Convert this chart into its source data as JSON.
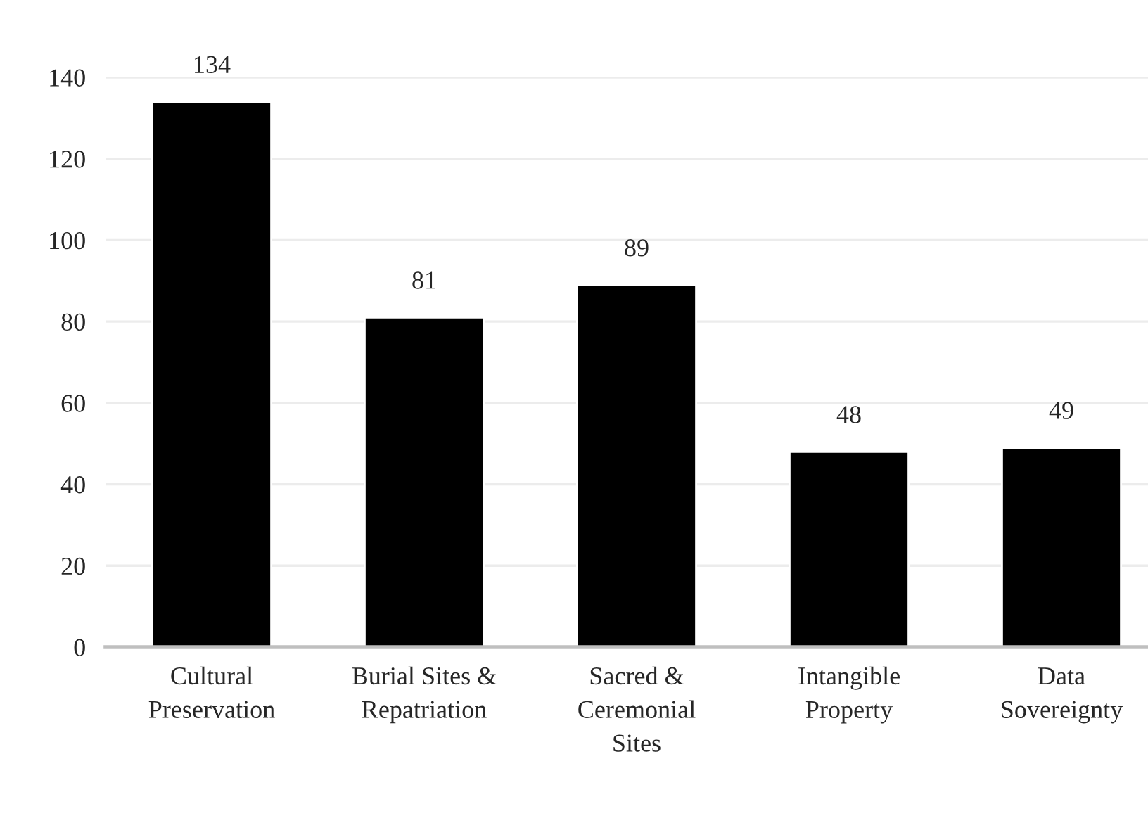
{
  "chart_data": {
    "type": "bar",
    "categories": [
      "Cultural\nPreservation",
      "Burial Sites &\nRepatriation",
      "Sacred &\nCeremonial\nSites",
      "Intangible\nProperty",
      "Data\nSovereignty"
    ],
    "values": [
      134,
      81,
      89,
      48,
      49
    ],
    "color": "#000000",
    "ylim": [
      0,
      140
    ],
    "yticks": [
      0,
      20,
      40,
      60,
      80,
      100,
      120,
      140
    ],
    "grid": "y",
    "data_labels": true
  }
}
